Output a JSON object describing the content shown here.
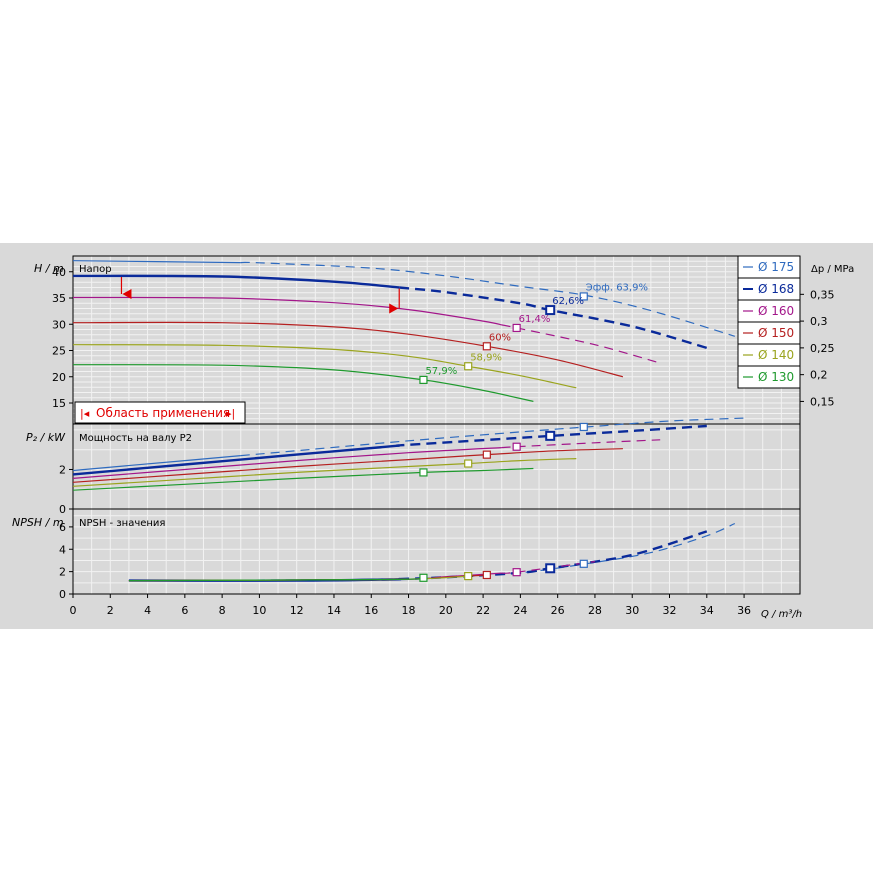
{
  "colors": {
    "background": "#d9d9d9",
    "grid": "#f2f2f2",
    "frame": "#000000",
    "d175": "#2f6bbf",
    "d168": "#0a2a9a",
    "d160": "#a3168a",
    "d150": "#b52020",
    "d140": "#9aa41e",
    "d130": "#1f9a2e",
    "range_marker": "#e00000"
  },
  "panels": {
    "head": {
      "axis_label": "H / m",
      "title": "Напор",
      "right_axis_label": "Δp / MPa"
    },
    "power": {
      "axis_label": "P₂ / kW",
      "title": "Мощность на валу P2"
    },
    "npsh": {
      "axis_label": "NPSH / m",
      "title": "NPSH - значения"
    },
    "x_axis_label": "Q / m³/h",
    "range_label": "Область применения"
  },
  "chart_data": {
    "type": "line",
    "x_label": "Q / m³/h",
    "x_ticks": [
      0,
      2,
      4,
      6,
      8,
      10,
      12,
      14,
      16,
      18,
      20,
      22,
      24,
      26,
      28,
      30,
      32,
      34,
      36
    ],
    "x_range": [
      0,
      39
    ],
    "head_panel": {
      "y_label": "H / m",
      "y_ticks": [
        15,
        20,
        25,
        30,
        35,
        40
      ],
      "y_range": [
        11,
        43
      ],
      "right_label": "Δp / MPa",
      "right_ticks": [
        "0,15",
        "0,2",
        "0,25",
        "0,3",
        "0,35"
      ],
      "right_tick_values": [
        15.3,
        20.4,
        25.5,
        30.6,
        35.7
      ],
      "application_range": {
        "q_min": 2.6,
        "q_max": 17.5,
        "h_at_min": 39.0,
        "h_at_max": 36.8
      }
    },
    "power_panel": {
      "y_label": "P₂ / kW",
      "y_ticks": [
        0,
        2
      ],
      "y_range": [
        0,
        4.3
      ]
    },
    "npsh_panel": {
      "y_label": "NPSH / m",
      "y_ticks": [
        0,
        2,
        4,
        6
      ],
      "y_range": [
        0,
        7.6
      ]
    },
    "efficiency_label_prefix": "Эфф.",
    "series": [
      {
        "name": "Ø 175",
        "color_key": "d175",
        "width": 1.2,
        "dash_from": 9,
        "head": [
          [
            0,
            42.1
          ],
          [
            10,
            41.7
          ],
          [
            16,
            40.7
          ],
          [
            20,
            39.2
          ],
          [
            24,
            37.2
          ],
          [
            27.5,
            35.5
          ],
          [
            31,
            32.6
          ],
          [
            35.5,
            27.7
          ]
        ],
        "power": [
          [
            0,
            1.95
          ],
          [
            6,
            2.45
          ],
          [
            12,
            2.95
          ],
          [
            18,
            3.45
          ],
          [
            24,
            3.9
          ],
          [
            27.5,
            4.15
          ],
          [
            32,
            4.45
          ],
          [
            36,
            4.6
          ]
        ],
        "npsh": [
          [
            3,
            1.2
          ],
          [
            17,
            1.3
          ],
          [
            20,
            1.5
          ],
          [
            24,
            1.9
          ],
          [
            27.5,
            2.7
          ],
          [
            31,
            3.7
          ],
          [
            34,
            5.2
          ],
          [
            35.5,
            6.3
          ]
        ],
        "bep": {
          "q": 27.4,
          "h": 35.3,
          "p": 4.15,
          "npsh": 2.7,
          "eff": "63,9%"
        }
      },
      {
        "name": "Ø 168",
        "color_key": "d168",
        "width": 2.4,
        "dash_from": 17.5,
        "head": [
          [
            0,
            39.2
          ],
          [
            8,
            39.1
          ],
          [
            14,
            38.1
          ],
          [
            17.5,
            37.0
          ],
          [
            20,
            36.1
          ],
          [
            24,
            34.0
          ],
          [
            25.6,
            32.7
          ],
          [
            30,
            29.6
          ],
          [
            34,
            25.5
          ]
        ],
        "power": [
          [
            0,
            1.75
          ],
          [
            6,
            2.25
          ],
          [
            12,
            2.75
          ],
          [
            18,
            3.25
          ],
          [
            24,
            3.6
          ],
          [
            25.6,
            3.7
          ],
          [
            30,
            3.95
          ],
          [
            34,
            4.2
          ]
        ],
        "npsh": [
          [
            3,
            1.2
          ],
          [
            12,
            1.2
          ],
          [
            17,
            1.3
          ],
          [
            20,
            1.5
          ],
          [
            24,
            1.9
          ],
          [
            25.6,
            2.3
          ],
          [
            30,
            3.5
          ],
          [
            34,
            5.6
          ]
        ],
        "bep": {
          "q": 25.6,
          "h": 32.7,
          "p": 3.7,
          "npsh": 2.3,
          "eff": "62,6%"
        }
      },
      {
        "name": "Ø 160",
        "color_key": "d160",
        "width": 1.2,
        "dash_from": 23,
        "head": [
          [
            0,
            35.1
          ],
          [
            8,
            35.0
          ],
          [
            14,
            34.1
          ],
          [
            18,
            32.8
          ],
          [
            22,
            30.6
          ],
          [
            23.8,
            29.3
          ],
          [
            28,
            26.1
          ],
          [
            31.5,
            22.6
          ]
        ],
        "power": [
          [
            0,
            1.55
          ],
          [
            6,
            2.0
          ],
          [
            12,
            2.45
          ],
          [
            18,
            2.85
          ],
          [
            23.8,
            3.15
          ],
          [
            28,
            3.35
          ],
          [
            31.5,
            3.5
          ]
        ],
        "npsh": [
          [
            3,
            1.2
          ],
          [
            17,
            1.3
          ],
          [
            20,
            1.55
          ],
          [
            23.8,
            1.95
          ],
          [
            28,
            2.9
          ]
        ],
        "bep": {
          "q": 23.8,
          "h": 29.3,
          "p": 3.15,
          "npsh": 1.95,
          "eff": "61,4%"
        }
      },
      {
        "name": "Ø 150",
        "color_key": "d150",
        "width": 1.2,
        "dash_from": 99,
        "head": [
          [
            0,
            30.3
          ],
          [
            8,
            30.3
          ],
          [
            14,
            29.5
          ],
          [
            18,
            28.1
          ],
          [
            22.2,
            25.8
          ],
          [
            26,
            23.2
          ],
          [
            29.5,
            20.0
          ]
        ],
        "power": [
          [
            0,
            1.35
          ],
          [
            6,
            1.75
          ],
          [
            12,
            2.15
          ],
          [
            18,
            2.5
          ],
          [
            22.2,
            2.75
          ],
          [
            26,
            2.95
          ],
          [
            29.5,
            3.05
          ]
        ],
        "npsh": [
          [
            3,
            1.2
          ],
          [
            17,
            1.3
          ],
          [
            20,
            1.5
          ],
          [
            22.2,
            1.7
          ]
        ],
        "bep": {
          "q": 22.2,
          "h": 25.8,
          "p": 2.75,
          "npsh": 1.7,
          "eff": "60%"
        }
      },
      {
        "name": "Ø 140",
        "color_key": "d140",
        "width": 1.2,
        "dash_from": 99,
        "head": [
          [
            0,
            26.1
          ],
          [
            8,
            26.0
          ],
          [
            14,
            25.2
          ],
          [
            18,
            23.9
          ],
          [
            21.2,
            22.0
          ],
          [
            24,
            20.2
          ],
          [
            27,
            17.9
          ]
        ],
        "power": [
          [
            0,
            1.15
          ],
          [
            6,
            1.5
          ],
          [
            12,
            1.85
          ],
          [
            18,
            2.15
          ],
          [
            21.2,
            2.3
          ],
          [
            24,
            2.45
          ],
          [
            27,
            2.55
          ]
        ],
        "npsh": [
          [
            3,
            1.2
          ],
          [
            17,
            1.3
          ],
          [
            21.2,
            1.6
          ]
        ],
        "bep": {
          "q": 21.2,
          "h": 22.0,
          "p": 2.3,
          "npsh": 1.6,
          "eff": "58,9%"
        }
      },
      {
        "name": "Ø 130",
        "color_key": "d130",
        "width": 1.2,
        "dash_from": 99,
        "head": [
          [
            0,
            22.3
          ],
          [
            8,
            22.2
          ],
          [
            14,
            21.3
          ],
          [
            18.8,
            19.4
          ],
          [
            22,
            17.4
          ],
          [
            24.7,
            15.3
          ]
        ],
        "power": [
          [
            0,
            0.95
          ],
          [
            6,
            1.25
          ],
          [
            12,
            1.55
          ],
          [
            18.8,
            1.85
          ],
          [
            22,
            1.95
          ],
          [
            24.7,
            2.05
          ]
        ],
        "npsh": [
          [
            3,
            1.2
          ],
          [
            17,
            1.3
          ],
          [
            18.8,
            1.45
          ]
        ],
        "bep": {
          "q": 18.8,
          "h": 19.4,
          "p": 1.85,
          "npsh": 1.45,
          "eff": "57,9%"
        }
      }
    ]
  }
}
